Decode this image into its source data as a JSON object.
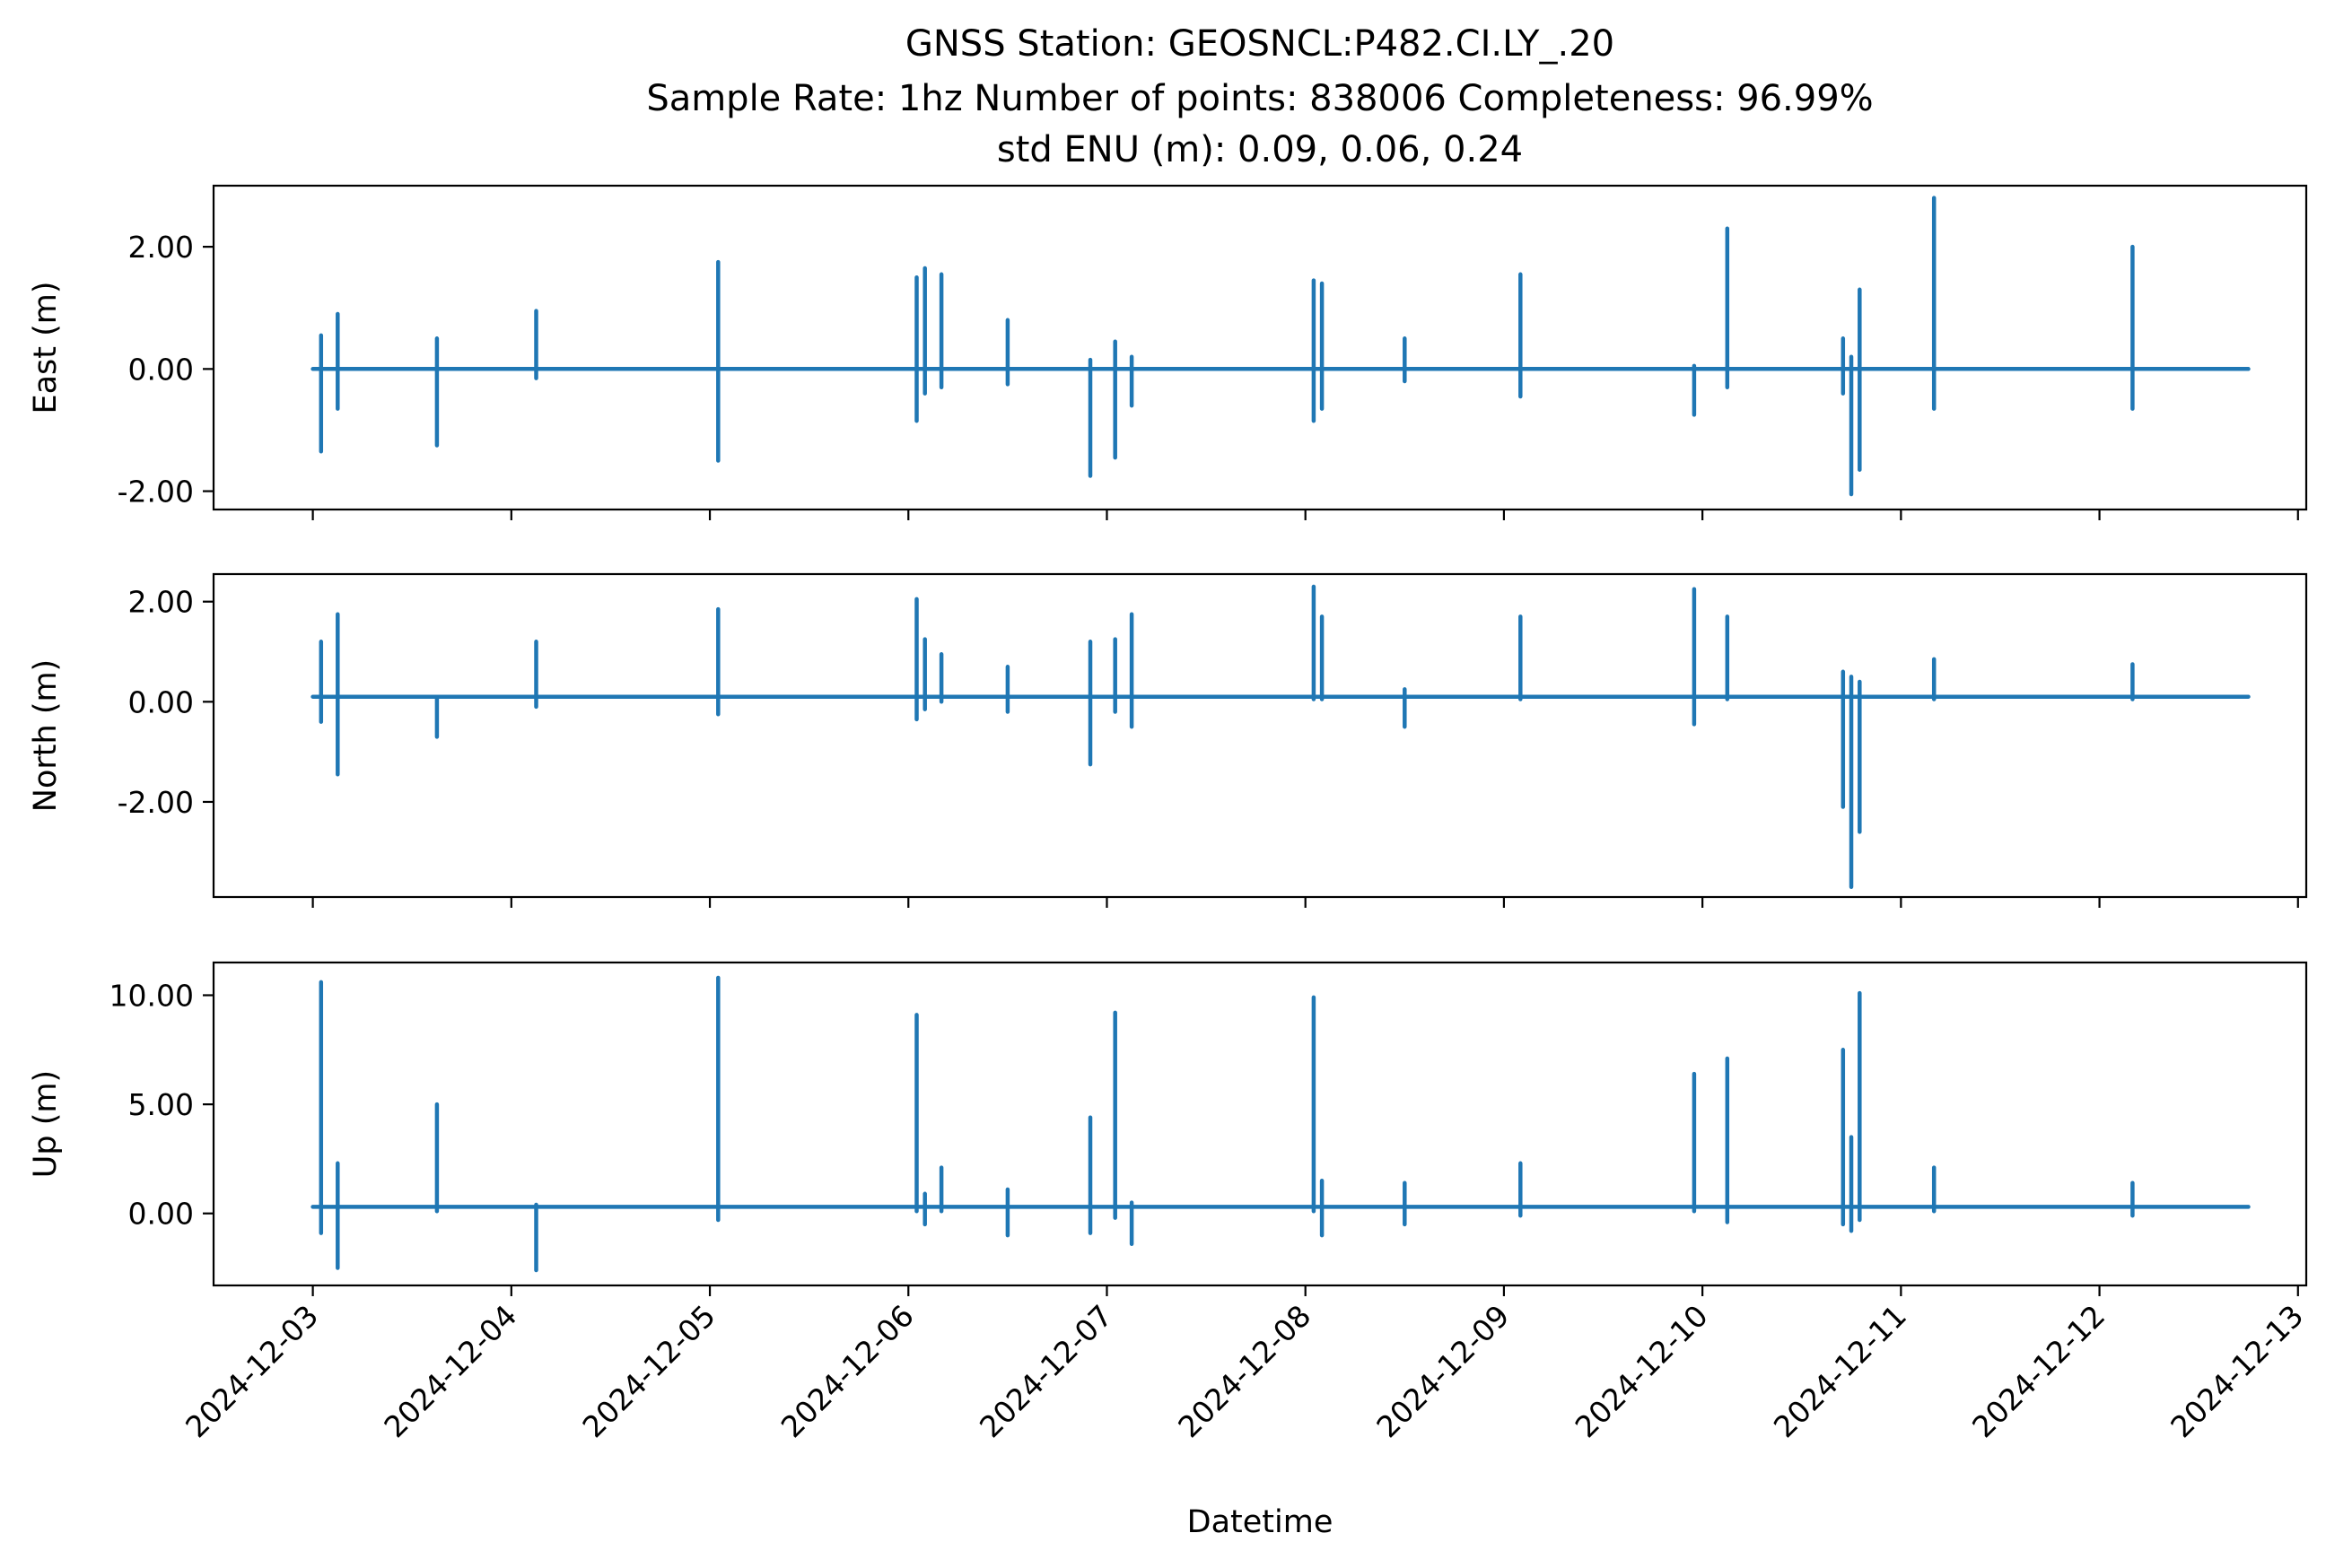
{
  "title": {
    "line1": "GNSS Station: GEOSNCL:P482.CI.LY_.20",
    "line2": "Sample Rate: 1hz   Number of points: 838006    Completeness:  96.99%",
    "line3": "std ENU (m):  0.09, 0.06, 0.24"
  },
  "chart_data": [
    {
      "type": "line",
      "ylabel": "East (m)",
      "xlabel": "",
      "ylim": [
        -2.3,
        3.0
      ],
      "yticks": [
        -2.0,
        0.0,
        2.0
      ],
      "ytick_labels": [
        "-2.00",
        "0.00",
        "2.00"
      ],
      "xlim": [
        "2024-12-02T12:00",
        "2024-12-13T01:00"
      ],
      "grid": false,
      "color": "#1f77b4",
      "series": [
        {
          "baseline": 0.0,
          "spikes": [
            {
              "t": "2024-12-03T01:00",
              "min": -1.35,
              "max": 0.55
            },
            {
              "t": "2024-12-03T03:00",
              "min": -0.65,
              "max": 0.9
            },
            {
              "t": "2024-12-03T15:00",
              "min": -1.25,
              "max": 0.5
            },
            {
              "t": "2024-12-04T03:00",
              "min": -0.15,
              "max": 0.95
            },
            {
              "t": "2024-12-05T01:00",
              "min": -1.5,
              "max": 1.75
            },
            {
              "t": "2024-12-06T01:00",
              "min": -0.85,
              "max": 1.5
            },
            {
              "t": "2024-12-06T02:00",
              "min": -0.4,
              "max": 1.65
            },
            {
              "t": "2024-12-06T04:00",
              "min": -0.3,
              "max": 1.55
            },
            {
              "t": "2024-12-06T12:00",
              "min": -0.25,
              "max": 0.8
            },
            {
              "t": "2024-12-06T22:00",
              "min": -1.75,
              "max": 0.15
            },
            {
              "t": "2024-12-07T01:00",
              "min": -1.45,
              "max": 0.45
            },
            {
              "t": "2024-12-07T03:00",
              "min": -0.6,
              "max": 0.2
            },
            {
              "t": "2024-12-08T01:00",
              "min": -0.85,
              "max": 1.45
            },
            {
              "t": "2024-12-08T02:00",
              "min": -0.65,
              "max": 1.4
            },
            {
              "t": "2024-12-08T12:00",
              "min": -0.2,
              "max": 0.5
            },
            {
              "t": "2024-12-09T02:00",
              "min": -0.45,
              "max": 1.55
            },
            {
              "t": "2024-12-09T23:00",
              "min": -0.75,
              "max": 0.05
            },
            {
              "t": "2024-12-10T03:00",
              "min": -0.3,
              "max": 2.3
            },
            {
              "t": "2024-12-10T17:00",
              "min": -0.4,
              "max": 0.5
            },
            {
              "t": "2024-12-10T18:00",
              "min": -2.05,
              "max": 0.2
            },
            {
              "t": "2024-12-10T19:00",
              "min": -1.65,
              "max": 1.3
            },
            {
              "t": "2024-12-11T04:00",
              "min": -0.65,
              "max": 2.8
            },
            {
              "t": "2024-12-12T04:00",
              "min": -0.65,
              "max": 2.0
            }
          ]
        }
      ]
    },
    {
      "type": "line",
      "ylabel": "North (m)",
      "xlabel": "",
      "ylim": [
        -3.9,
        2.55
      ],
      "yticks": [
        -2.0,
        0.0,
        2.0
      ],
      "ytick_labels": [
        "-2.00",
        "0.00",
        "2.00"
      ],
      "xlim": [
        "2024-12-02T12:00",
        "2024-12-13T01:00"
      ],
      "grid": false,
      "color": "#1f77b4",
      "series": [
        {
          "baseline": 0.1,
          "spikes": [
            {
              "t": "2024-12-03T01:00",
              "min": -0.4,
              "max": 1.2
            },
            {
              "t": "2024-12-03T03:00",
              "min": -1.45,
              "max": 1.75
            },
            {
              "t": "2024-12-03T15:00",
              "min": -0.7,
              "max": 0.1
            },
            {
              "t": "2024-12-04T03:00",
              "min": -0.1,
              "max": 1.2
            },
            {
              "t": "2024-12-05T01:00",
              "min": -0.25,
              "max": 1.85
            },
            {
              "t": "2024-12-06T01:00",
              "min": -0.35,
              "max": 2.05
            },
            {
              "t": "2024-12-06T02:00",
              "min": -0.15,
              "max": 1.25
            },
            {
              "t": "2024-12-06T04:00",
              "min": 0.0,
              "max": 0.95
            },
            {
              "t": "2024-12-06T12:00",
              "min": -0.2,
              "max": 0.7
            },
            {
              "t": "2024-12-06T22:00",
              "min": -1.25,
              "max": 1.2
            },
            {
              "t": "2024-12-07T01:00",
              "min": -0.2,
              "max": 1.25
            },
            {
              "t": "2024-12-07T03:00",
              "min": -0.5,
              "max": 1.75
            },
            {
              "t": "2024-12-08T01:00",
              "min": 0.05,
              "max": 2.3
            },
            {
              "t": "2024-12-08T02:00",
              "min": 0.05,
              "max": 1.7
            },
            {
              "t": "2024-12-08T12:00",
              "min": -0.5,
              "max": 0.25
            },
            {
              "t": "2024-12-09T02:00",
              "min": 0.05,
              "max": 1.7
            },
            {
              "t": "2024-12-09T23:00",
              "min": -0.45,
              "max": 2.25
            },
            {
              "t": "2024-12-10T03:00",
              "min": 0.05,
              "max": 1.7
            },
            {
              "t": "2024-12-10T17:00",
              "min": -2.1,
              "max": 0.6
            },
            {
              "t": "2024-12-10T18:00",
              "min": -3.7,
              "max": 0.5
            },
            {
              "t": "2024-12-10T19:00",
              "min": -2.6,
              "max": 0.4
            },
            {
              "t": "2024-12-11T04:00",
              "min": 0.05,
              "max": 0.85
            },
            {
              "t": "2024-12-12T04:00",
              "min": 0.05,
              "max": 0.75
            }
          ]
        }
      ]
    },
    {
      "type": "line",
      "ylabel": "Up (m)",
      "xlabel": "Datetime",
      "ylim": [
        -3.3,
        11.5
      ],
      "yticks": [
        0.0,
        5.0,
        10.0
      ],
      "ytick_labels": [
        "0.00",
        "5.00",
        "10.00"
      ],
      "xlim": [
        "2024-12-02T12:00",
        "2024-12-13T01:00"
      ],
      "xticks": [
        "2024-12-03",
        "2024-12-04",
        "2024-12-05",
        "2024-12-06",
        "2024-12-07",
        "2024-12-08",
        "2024-12-09",
        "2024-12-10",
        "2024-12-11",
        "2024-12-12",
        "2024-12-13"
      ],
      "grid": false,
      "color": "#1f77b4",
      "series": [
        {
          "baseline": 0.3,
          "spikes": [
            {
              "t": "2024-12-03T01:00",
              "min": -0.9,
              "max": 10.6
            },
            {
              "t": "2024-12-03T03:00",
              "min": -2.5,
              "max": 2.3
            },
            {
              "t": "2024-12-03T15:00",
              "min": 0.1,
              "max": 5.0
            },
            {
              "t": "2024-12-04T03:00",
              "min": -2.6,
              "max": 0.4
            },
            {
              "t": "2024-12-05T01:00",
              "min": -0.3,
              "max": 10.8
            },
            {
              "t": "2024-12-06T01:00",
              "min": 0.1,
              "max": 9.1
            },
            {
              "t": "2024-12-06T02:00",
              "min": -0.5,
              "max": 0.9
            },
            {
              "t": "2024-12-06T04:00",
              "min": 0.1,
              "max": 2.1
            },
            {
              "t": "2024-12-06T12:00",
              "min": -1.0,
              "max": 1.1
            },
            {
              "t": "2024-12-06T22:00",
              "min": -0.9,
              "max": 4.4
            },
            {
              "t": "2024-12-07T01:00",
              "min": -0.2,
              "max": 9.2
            },
            {
              "t": "2024-12-07T03:00",
              "min": -1.4,
              "max": 0.5
            },
            {
              "t": "2024-12-08T01:00",
              "min": 0.1,
              "max": 9.9
            },
            {
              "t": "2024-12-08T02:00",
              "min": -1.0,
              "max": 1.5
            },
            {
              "t": "2024-12-08T12:00",
              "min": -0.5,
              "max": 1.4
            },
            {
              "t": "2024-12-09T02:00",
              "min": -0.1,
              "max": 2.3
            },
            {
              "t": "2024-12-09T23:00",
              "min": 0.1,
              "max": 6.4
            },
            {
              "t": "2024-12-10T03:00",
              "min": -0.4,
              "max": 7.1
            },
            {
              "t": "2024-12-10T17:00",
              "min": -0.5,
              "max": 7.5
            },
            {
              "t": "2024-12-10T18:00",
              "min": -0.8,
              "max": 3.5
            },
            {
              "t": "2024-12-10T19:00",
              "min": -0.3,
              "max": 10.1
            },
            {
              "t": "2024-12-11T04:00",
              "min": 0.1,
              "max": 2.1
            },
            {
              "t": "2024-12-12T04:00",
              "min": -0.1,
              "max": 1.4
            }
          ]
        }
      ]
    }
  ]
}
